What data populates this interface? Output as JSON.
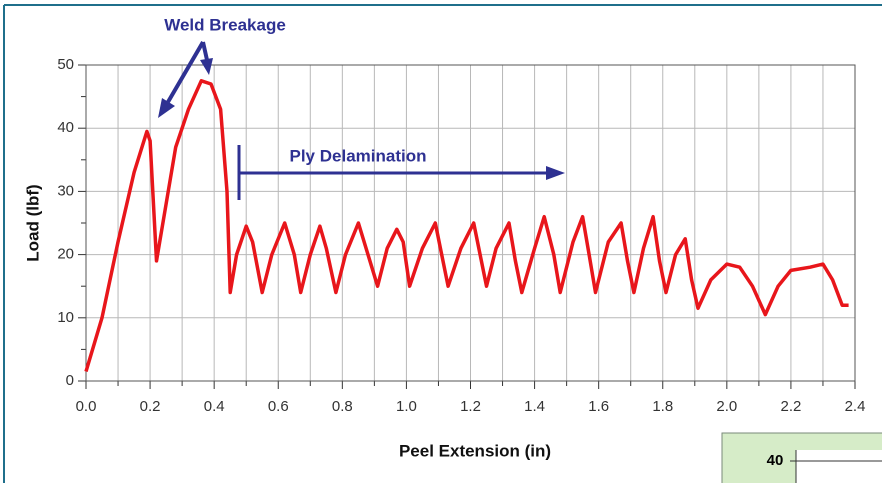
{
  "chart_data": {
    "type": "line",
    "xlabel": "Peel Extension (in)",
    "ylabel": "Load (lbf)",
    "annotations": [
      "Weld Breakage",
      "Ply Delamination"
    ],
    "inset_label": "40",
    "color": "#e8161b",
    "grid": true,
    "xlim": [
      0,
      2.4
    ],
    "ylim": [
      0,
      50
    ],
    "xticks": [
      {
        "value": 0,
        "label": "0.0"
      },
      0.2,
      0.4,
      0.6,
      0.8,
      {
        "value": 1,
        "label": "1.0"
      },
      1.2,
      1.4,
      1.6,
      1.8,
      {
        "value": 2,
        "label": "2.0"
      },
      2.2,
      2.4
    ],
    "x_minor_ticks": [
      0.1,
      0.3,
      0.5,
      0.7,
      0.9,
      1.1,
      1.3,
      1.5,
      1.7,
      1.9,
      2.1,
      2.3
    ],
    "yticks": [
      0,
      10,
      20,
      30,
      40,
      50
    ],
    "y_minor_ticks": [
      5,
      15,
      25,
      35,
      45
    ],
    "x": [
      0,
      0.05,
      0.1,
      0.15,
      0.19,
      0.2,
      0.22,
      0.25,
      0.28,
      0.32,
      0.36,
      0.39,
      0.42,
      0.44,
      0.45,
      0.47,
      0.5,
      0.52,
      0.55,
      0.58,
      0.62,
      0.65,
      0.67,
      0.7,
      0.73,
      0.75,
      0.78,
      0.81,
      0.85,
      0.88,
      0.91,
      0.94,
      0.97,
      0.99,
      1.01,
      1.05,
      1.09,
      1.11,
      1.13,
      1.17,
      1.21,
      1.23,
      1.25,
      1.28,
      1.32,
      1.34,
      1.36,
      1.4,
      1.43,
      1.46,
      1.48,
      1.52,
      1.55,
      1.57,
      1.59,
      1.63,
      1.67,
      1.69,
      1.71,
      1.74,
      1.77,
      1.79,
      1.81,
      1.84,
      1.87,
      1.89,
      1.91,
      1.95,
      2.0,
      2.04,
      2.08,
      2.12,
      2.16,
      2.2,
      2.26,
      2.3,
      2.33,
      2.36,
      2.38
    ],
    "values": [
      1.5,
      10,
      22,
      33,
      39.5,
      38,
      19,
      28,
      37,
      43,
      47.5,
      47,
      43,
      30,
      14,
      20,
      24.5,
      22,
      14,
      20,
      25,
      20,
      14,
      20,
      24.5,
      21,
      14,
      20,
      25,
      20,
      15,
      21,
      24,
      22,
      15,
      21,
      25,
      20,
      15,
      21,
      25,
      20,
      15,
      21,
      25,
      19,
      14,
      21,
      26,
      20,
      14,
      22,
      26,
      20,
      14,
      22,
      25,
      19,
      14,
      21,
      26,
      19,
      14,
      20,
      22.5,
      16,
      11.5,
      16,
      18.5,
      18,
      15,
      10.5,
      15,
      17.5,
      18,
      18.5,
      16,
      12,
      12
    ]
  }
}
